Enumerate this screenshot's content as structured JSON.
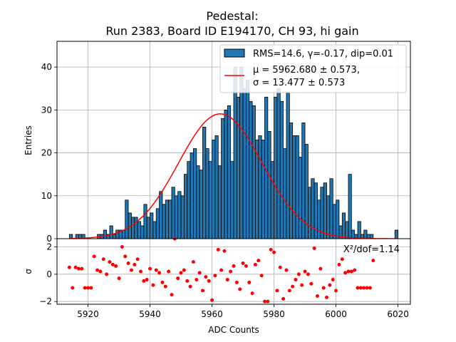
{
  "chart_data": [
    {
      "type": "bar",
      "role": "histogram",
      "title_line1": "Pedestal:",
      "title_line2": "Run 2383, Board ID E194170, CH 93, hi gain",
      "ylabel": "Entries",
      "xlim": [
        5910,
        6024
      ],
      "ylim": [
        0,
        46
      ],
      "grid": true,
      "xticks": [
        5920,
        5940,
        5960,
        5980,
        6000,
        6020
      ],
      "yticks": [
        0,
        10,
        20,
        30,
        40
      ],
      "bin_start": 5914,
      "bin_width": 1,
      "counts": [
        1,
        0,
        1,
        1,
        1,
        0,
        0,
        0,
        0,
        1,
        1,
        2,
        1,
        3,
        1,
        2,
        2,
        2,
        9,
        6,
        5,
        5,
        4,
        3,
        8,
        5,
        6,
        4,
        7,
        11,
        8,
        9,
        9,
        12,
        10,
        11,
        10,
        15,
        18,
        20,
        21,
        17,
        16,
        26,
        21,
        18,
        23,
        24,
        17,
        28,
        30,
        31,
        18,
        40,
        33,
        40,
        35,
        37,
        32,
        31,
        23,
        24,
        23,
        33,
        25,
        18,
        33,
        35,
        32,
        21,
        34,
        27,
        24,
        24,
        19,
        27,
        22,
        12,
        14,
        13,
        9,
        12,
        13,
        10,
        14,
        8,
        9,
        3,
        6,
        4,
        15,
        2,
        1,
        4,
        1,
        2,
        1,
        1,
        0,
        0,
        0,
        0,
        0,
        0,
        0,
        2
      ],
      "bar_color": "#1f77b4",
      "bar_edge_color": "#000000",
      "fit_color": "#ff0000",
      "fit": {
        "mu": 5962.68,
        "sigma": 13.477,
        "amplitude": 29.1
      },
      "legend_position": "top-right",
      "legend": {
        "hist_label": "RMS=14.6, γ=-0.17, dip=0.01",
        "fit_label_line1": "μ = 5962.680 ± 0.573,",
        "fit_label_line2": "σ = 13.477 ± 0.573"
      }
    },
    {
      "type": "scatter",
      "role": "residuals",
      "xlabel": "ADC Counts",
      "ylabel": "σ",
      "xlim": [
        5910,
        6024
      ],
      "ylim": [
        -2.2,
        2.6
      ],
      "grid": true,
      "yticks": [
        -2,
        0,
        2
      ],
      "point_color": "#ff0000",
      "annotation": "X²/dof=1.14",
      "points": [
        [
          5914,
          0.5
        ],
        [
          5915,
          -1.0
        ],
        [
          5916,
          0.5
        ],
        [
          5917,
          0.4
        ],
        [
          5918,
          0.4
        ],
        [
          5919,
          -1.0
        ],
        [
          5920,
          -1.0
        ],
        [
          5921,
          -1.0
        ],
        [
          5922,
          1.3
        ],
        [
          5923,
          0.3
        ],
        [
          5924,
          0.2
        ],
        [
          5925,
          1.1
        ],
        [
          5926,
          0
        ],
        [
          5927,
          0.9
        ],
        [
          5928,
          0.7
        ],
        [
          5929,
          0.6
        ],
        [
          5930,
          -0.3
        ],
        [
          5931,
          2.0
        ],
        [
          5932,
          1.3
        ],
        [
          5933,
          0.8
        ],
        [
          5934,
          0.3
        ],
        [
          5935,
          0.7
        ],
        [
          5936,
          1.1
        ],
        [
          5937,
          0.2
        ],
        [
          5938,
          -0.5
        ],
        [
          5939,
          -0.4
        ],
        [
          5940,
          0.4
        ],
        [
          5941,
          -0.8
        ],
        [
          5942,
          0.3
        ],
        [
          5943,
          0.1
        ],
        [
          5944,
          -0.6
        ],
        [
          5945,
          -0.9
        ],
        [
          5946,
          0.2
        ],
        [
          5947,
          -1.5
        ],
        [
          5948,
          2.6
        ],
        [
          5949,
          -0.3
        ],
        [
          5950,
          0.1
        ],
        [
          5951,
          0.3
        ],
        [
          5952,
          -0.5
        ],
        [
          5953,
          -0.9
        ],
        [
          5954,
          0.9
        ],
        [
          5955,
          -0.4
        ],
        [
          5956,
          0.1
        ],
        [
          5957,
          -1.2
        ],
        [
          5958,
          -0.2
        ],
        [
          5959,
          -0.5
        ],
        [
          5960,
          -1.9
        ],
        [
          5961,
          -0.1
        ],
        [
          5962,
          1.8
        ],
        [
          5963,
          0.3
        ],
        [
          5964,
          1.7
        ],
        [
          5965,
          -0.4
        ],
        [
          5966,
          0.2
        ],
        [
          5967,
          0.6
        ],
        [
          5968,
          -0.6
        ],
        [
          5969,
          -1.1
        ],
        [
          5970,
          0.8
        ],
        [
          5971,
          0.6
        ],
        [
          5972,
          -0.6
        ],
        [
          5973,
          -1.4
        ],
        [
          5974,
          0.7
        ],
        [
          5975,
          1.0
        ],
        [
          5976,
          -0.1
        ],
        [
          5977,
          -2.0
        ],
        [
          5978,
          -2.0
        ],
        [
          5979,
          1.8
        ],
        [
          5980,
          1.6
        ],
        [
          5981,
          -1.2
        ],
        [
          5982,
          0.5
        ],
        [
          5983,
          -1.8
        ],
        [
          5984,
          0.3
        ],
        [
          5985,
          -1.2
        ],
        [
          5986,
          -0.9
        ],
        [
          5987,
          -0.4
        ],
        [
          5988,
          0
        ],
        [
          5989,
          -0.8
        ],
        [
          5990,
          0.2
        ],
        [
          5991,
          0.0
        ],
        [
          5992,
          -0.7
        ],
        [
          5993,
          1.9
        ],
        [
          5994,
          -1.6
        ],
        [
          5995,
          0.4
        ],
        [
          5996,
          -1.0
        ],
        [
          5997,
          -1.7
        ],
        [
          5998,
          -0.8
        ],
        [
          5999,
          -0.4
        ],
        [
          6000,
          -1.2
        ],
        [
          6001,
          0.7
        ],
        [
          6002,
          1.1
        ],
        [
          6003,
          0.1
        ],
        [
          6004,
          0.2
        ],
        [
          6005,
          0.2
        ],
        [
          6006,
          0.3
        ],
        [
          6007,
          -1.0
        ],
        [
          6008,
          -1.0
        ],
        [
          6009,
          -1.0
        ],
        [
          6010,
          -1.0
        ],
        [
          6011,
          -1.0
        ],
        [
          6012,
          1.0
        ]
      ]
    }
  ]
}
